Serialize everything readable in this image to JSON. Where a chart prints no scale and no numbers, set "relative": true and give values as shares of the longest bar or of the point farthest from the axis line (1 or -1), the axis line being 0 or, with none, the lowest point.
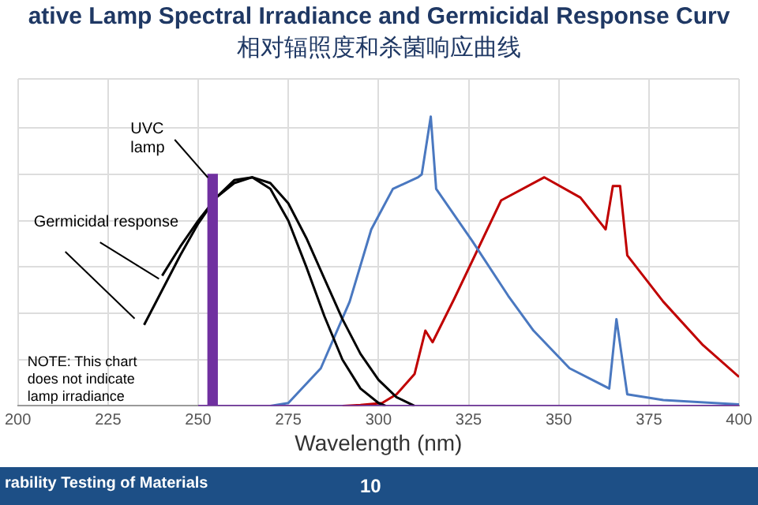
{
  "chart_data": {
    "type": "line",
    "title": "ative Lamp Spectral Irradiance and Germicidal Response Curv",
    "subtitle": "相对辐照度和杀菌响应曲线",
    "xlabel": "Wavelength (nm)",
    "relative": true,
    "xlim": [
      200,
      400
    ],
    "xticks": [
      200,
      225,
      250,
      275,
      300,
      325,
      350,
      375,
      400
    ],
    "grid": true,
    "legend": false,
    "marker": "none",
    "line_style": "solid",
    "annotations": [
      "NOTE: This chart does not indicate lamp irradiance",
      "rability Testing of Materials",
      "10"
    ],
    "series": [
      {
        "name": "UVC lamp",
        "type": "bar",
        "color": "#7030a0",
        "x": [
          254
        ],
        "values": [
          0.8
        ]
      },
      {
        "color": "#7030a0",
        "x": [
          250,
          400
        ],
        "values": [
          0,
          0
        ]
      },
      {
        "name": "Germicidal response",
        "color": "#000000",
        "x": [
          240,
          245,
          250,
          255,
          260,
          265,
          270,
          275,
          280,
          285,
          290,
          295,
          300,
          305,
          310
        ],
        "values": [
          0.45,
          0.55,
          0.64,
          0.72,
          0.77,
          0.79,
          0.77,
          0.7,
          0.58,
          0.44,
          0.3,
          0.18,
          0.09,
          0.03,
          0
        ]
      },
      {
        "color": "#000000",
        "x": [
          235,
          240,
          245,
          250,
          255,
          260,
          265,
          270,
          275,
          280,
          285,
          290,
          295,
          300,
          302
        ],
        "values": [
          0.28,
          0.4,
          0.52,
          0.63,
          0.72,
          0.78,
          0.79,
          0.75,
          0.64,
          0.48,
          0.31,
          0.16,
          0.06,
          0.01,
          0
        ]
      },
      {
        "color": "#4a78c0",
        "x": [
          270,
          275,
          284,
          292,
          298,
          304,
          311,
          312,
          314.5,
          316,
          326,
          336,
          343,
          353,
          364,
          366,
          369,
          379,
          400
        ],
        "values": [
          0,
          0.01,
          0.13,
          0.36,
          0.61,
          0.75,
          0.79,
          0.8,
          1,
          0.75,
          0.57,
          0.38,
          0.26,
          0.13,
          0.06,
          0.3,
          0.04,
          0.02,
          0.005
        ]
      },
      {
        "color": "#c00000",
        "x": [
          290,
          295,
          301,
          305,
          310,
          313,
          315,
          321,
          334,
          346,
          356,
          363,
          365,
          367,
          369,
          379,
          390,
          400
        ],
        "values": [
          0,
          0.003,
          0.01,
          0.04,
          0.11,
          0.26,
          0.22,
          0.37,
          0.71,
          0.79,
          0.72,
          0.61,
          0.76,
          0.76,
          0.52,
          0.36,
          0.21,
          0.1
        ]
      }
    ]
  }
}
